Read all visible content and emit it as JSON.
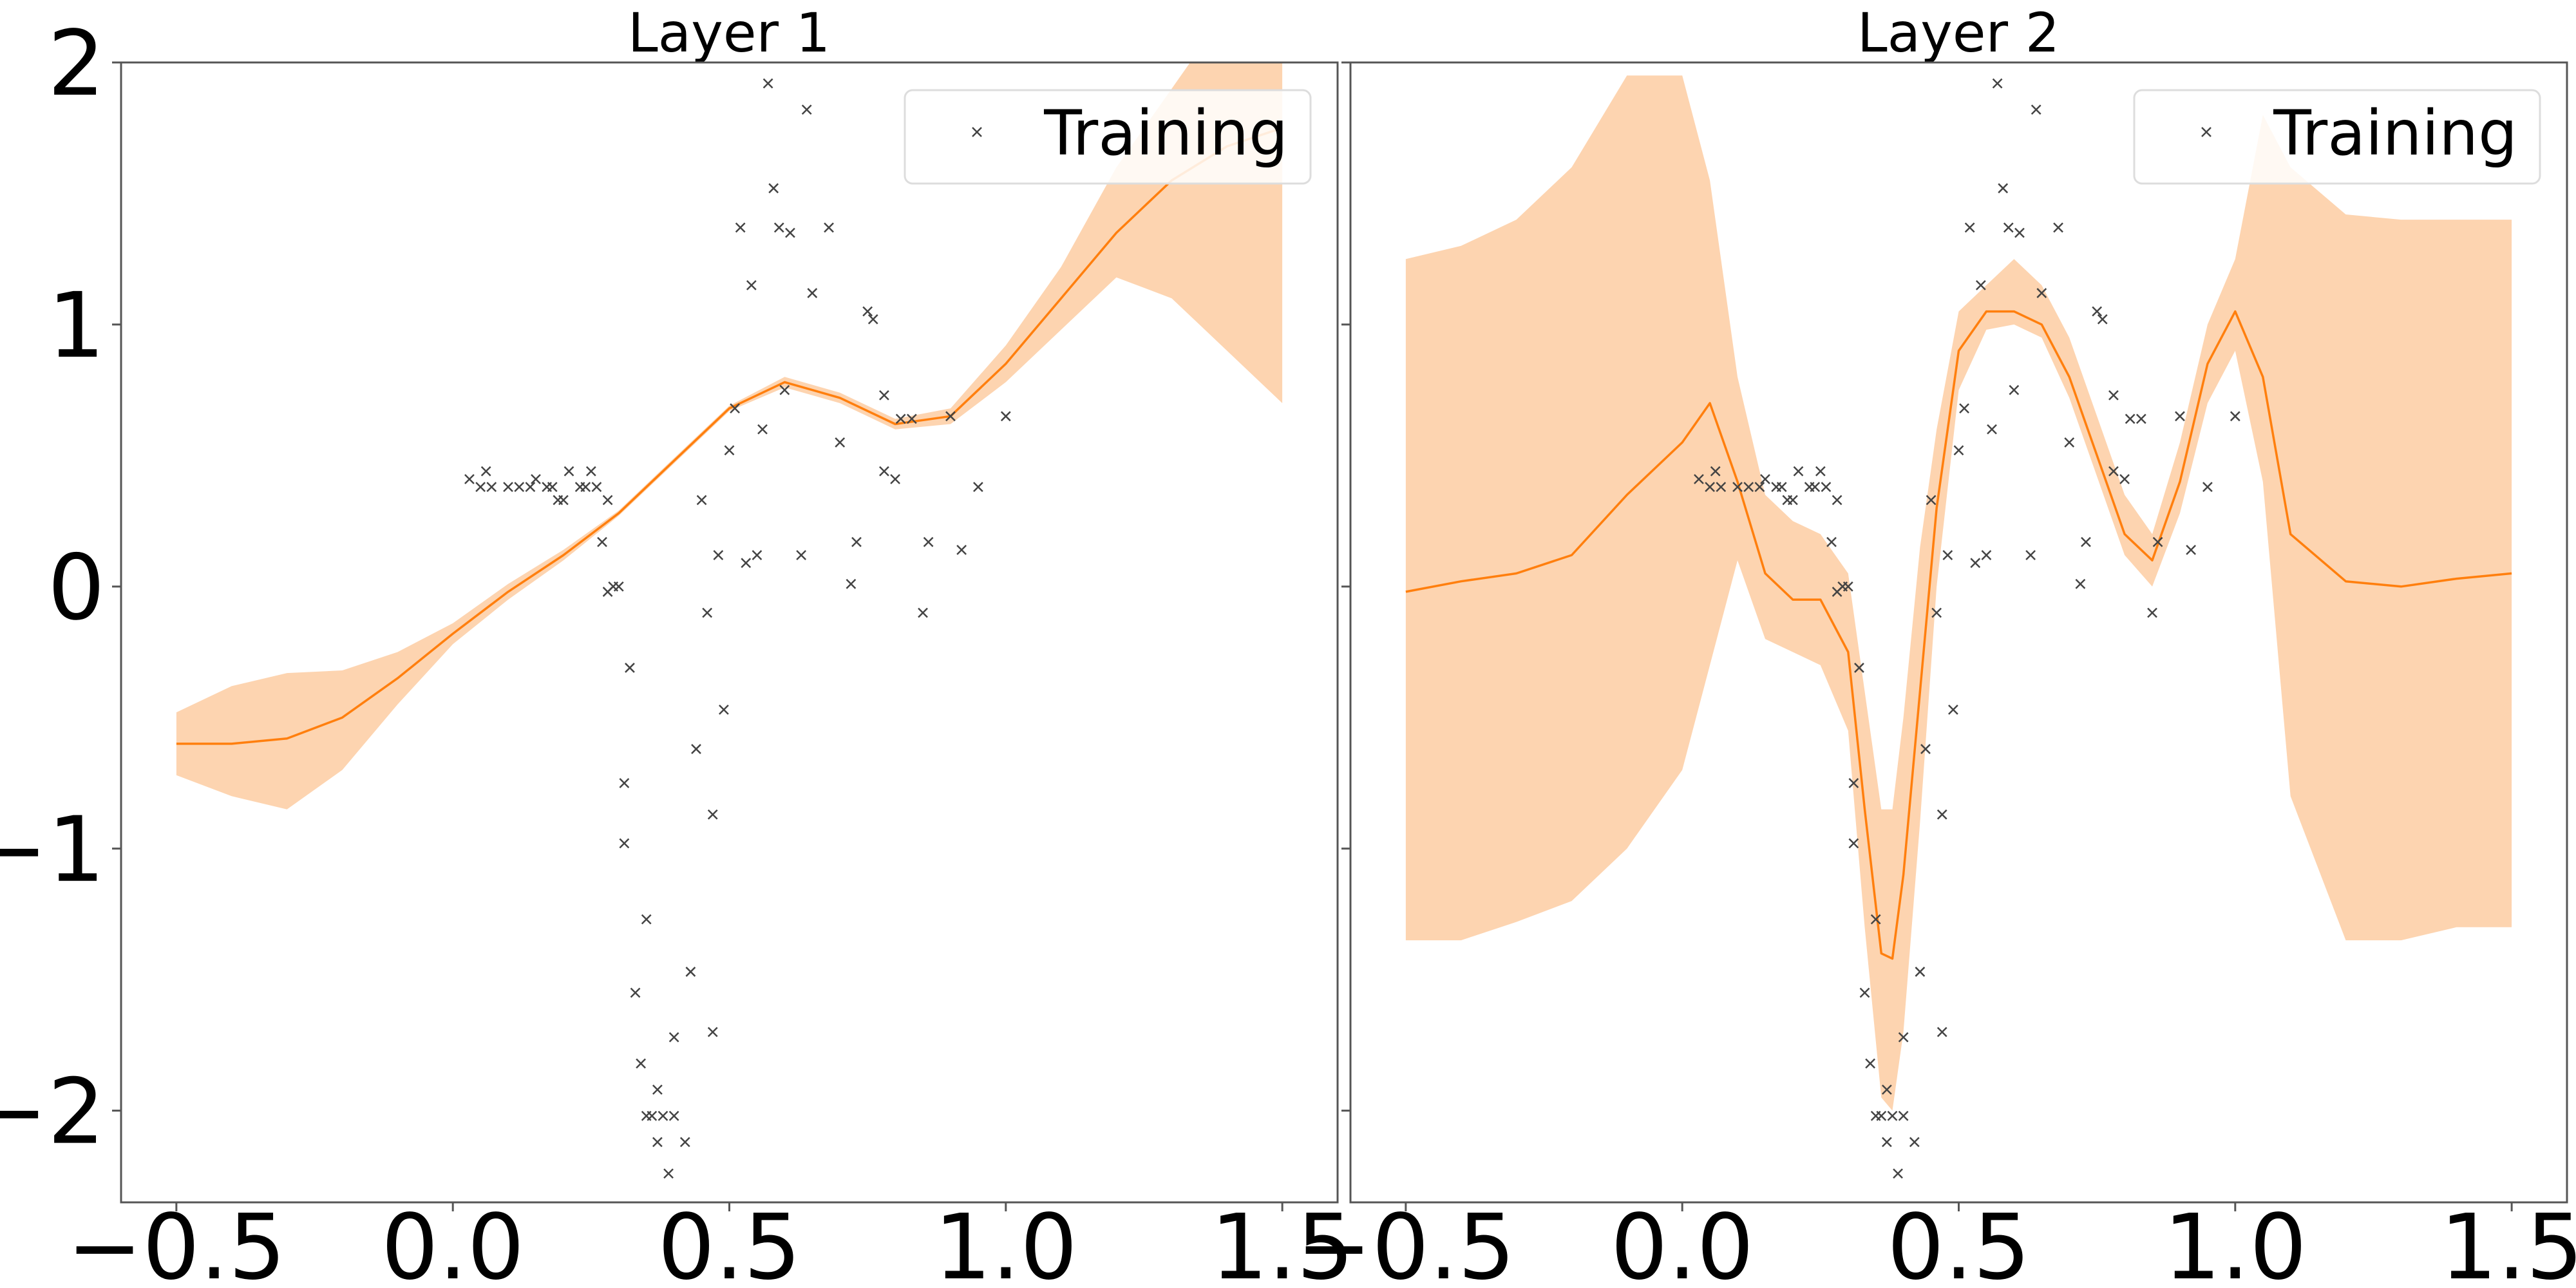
{
  "chart_data": [
    {
      "type": "line",
      "title": "Layer 1",
      "xlabel": "",
      "ylabel": "",
      "xlim": [
        -0.6,
        1.6
      ],
      "ylim": [
        -2.35,
        2.0
      ],
      "xticks": [
        -0.5,
        0.0,
        0.5,
        1.0,
        1.5
      ],
      "xtick_labels": [
        "−0.5",
        "0.0",
        "0.5",
        "1.0",
        "1.5"
      ],
      "yticks": [
        -2,
        -1,
        0,
        1,
        2
      ],
      "ytick_labels": [
        "−2",
        "−1",
        "0",
        "1",
        "2"
      ],
      "grid": false,
      "legend": {
        "position": "top-right",
        "entries": [
          "Training"
        ]
      },
      "series": [
        {
          "kind": "mean_with_band",
          "color": "#ff7f0e",
          "band_color": "#fdd4b0",
          "x": [
            -0.5,
            -0.4,
            -0.3,
            -0.2,
            -0.1,
            0.0,
            0.1,
            0.2,
            0.3,
            0.4,
            0.5,
            0.6,
            0.7,
            0.8,
            0.9,
            1.0,
            1.1,
            1.2,
            1.3,
            1.4,
            1.5
          ],
          "mean": [
            -0.6,
            -0.6,
            -0.58,
            -0.5,
            -0.35,
            -0.18,
            -0.02,
            0.12,
            0.28,
            0.48,
            0.68,
            0.78,
            0.72,
            0.62,
            0.65,
            0.85,
            1.1,
            1.35,
            1.55,
            1.68,
            1.75
          ],
          "lower": [
            -0.72,
            -0.8,
            -0.85,
            -0.7,
            -0.45,
            -0.22,
            -0.05,
            0.1,
            0.27,
            0.47,
            0.67,
            0.76,
            0.7,
            0.6,
            0.62,
            0.78,
            0.98,
            1.18,
            1.1,
            0.9,
            0.7
          ],
          "upper": [
            -0.48,
            -0.38,
            -0.33,
            -0.32,
            -0.25,
            -0.14,
            0.01,
            0.14,
            0.29,
            0.49,
            0.69,
            0.8,
            0.74,
            0.64,
            0.68,
            0.92,
            1.22,
            1.6,
            1.9,
            2.2,
            2.4
          ]
        }
      ],
      "training_points": [
        [
          0.03,
          0.41
        ],
        [
          0.05,
          0.38
        ],
        [
          0.06,
          0.44
        ],
        [
          0.07,
          0.38
        ],
        [
          0.1,
          0.38
        ],
        [
          0.12,
          0.38
        ],
        [
          0.14,
          0.38
        ],
        [
          0.15,
          0.41
        ],
        [
          0.17,
          0.38
        ],
        [
          0.18,
          0.38
        ],
        [
          0.19,
          0.33
        ],
        [
          0.2,
          0.33
        ],
        [
          0.21,
          0.44
        ],
        [
          0.23,
          0.38
        ],
        [
          0.24,
          0.38
        ],
        [
          0.25,
          0.44
        ],
        [
          0.26,
          0.38
        ],
        [
          0.27,
          0.17
        ],
        [
          0.28,
          0.33
        ],
        [
          0.28,
          -0.02
        ],
        [
          0.29,
          0.0
        ],
        [
          0.3,
          0.0
        ],
        [
          0.31,
          -0.75
        ],
        [
          0.31,
          -0.98
        ],
        [
          0.32,
          -0.31
        ],
        [
          0.33,
          -1.55
        ],
        [
          0.34,
          -1.82
        ],
        [
          0.35,
          -2.02
        ],
        [
          0.35,
          -1.27
        ],
        [
          0.36,
          -2.02
        ],
        [
          0.37,
          -1.92
        ],
        [
          0.37,
          -2.12
        ],
        [
          0.38,
          -2.02
        ],
        [
          0.39,
          -2.24
        ],
        [
          0.4,
          -1.72
        ],
        [
          0.4,
          -2.02
        ],
        [
          0.42,
          -2.12
        ],
        [
          0.43,
          -1.47
        ],
        [
          0.44,
          -0.62
        ],
        [
          0.45,
          0.33
        ],
        [
          0.46,
          -0.1
        ],
        [
          0.47,
          -0.87
        ],
        [
          0.47,
          -1.7
        ],
        [
          0.48,
          0.12
        ],
        [
          0.49,
          -0.47
        ],
        [
          0.5,
          0.52
        ],
        [
          0.51,
          0.68
        ],
        [
          0.52,
          1.37
        ],
        [
          0.53,
          0.09
        ],
        [
          0.54,
          1.15
        ],
        [
          0.55,
          0.12
        ],
        [
          0.56,
          0.6
        ],
        [
          0.57,
          1.92
        ],
        [
          0.58,
          1.52
        ],
        [
          0.59,
          1.37
        ],
        [
          0.6,
          0.75
        ],
        [
          0.61,
          1.35
        ],
        [
          0.63,
          0.12
        ],
        [
          0.64,
          1.82
        ],
        [
          0.65,
          1.12
        ],
        [
          0.68,
          1.37
        ],
        [
          0.7,
          0.55
        ],
        [
          0.72,
          0.01
        ],
        [
          0.73,
          0.17
        ],
        [
          0.75,
          1.05
        ],
        [
          0.76,
          1.02
        ],
        [
          0.78,
          0.73
        ],
        [
          0.78,
          0.44
        ],
        [
          0.8,
          0.41
        ],
        [
          0.81,
          0.64
        ],
        [
          0.83,
          0.64
        ],
        [
          0.85,
          -0.1
        ],
        [
          0.86,
          0.17
        ],
        [
          0.9,
          0.65
        ],
        [
          0.92,
          0.14
        ],
        [
          0.95,
          0.38
        ],
        [
          1.0,
          0.65
        ]
      ]
    },
    {
      "type": "line",
      "title": "Layer 2",
      "xlabel": "",
      "ylabel": "",
      "xlim": [
        -0.6,
        1.6
      ],
      "ylim": [
        -2.35,
        2.0
      ],
      "xticks": [
        -0.5,
        0.0,
        0.5,
        1.0,
        1.5
      ],
      "xtick_labels": [
        "−0.5",
        "0.0",
        "0.5",
        "1.0",
        "1.5"
      ],
      "yticks": [
        -2,
        -1,
        0,
        1,
        2
      ],
      "ytick_labels": [
        "",
        "",
        "",
        "",
        ""
      ],
      "grid": false,
      "legend": {
        "position": "top-right",
        "entries": [
          "Training"
        ]
      },
      "series": [
        {
          "kind": "mean_with_band",
          "color": "#ff7f0e",
          "band_color": "#fdd4b0",
          "x": [
            -0.5,
            -0.4,
            -0.3,
            -0.2,
            -0.1,
            0.0,
            0.05,
            0.1,
            0.15,
            0.2,
            0.25,
            0.3,
            0.33,
            0.36,
            0.38,
            0.4,
            0.43,
            0.46,
            0.5,
            0.55,
            0.6,
            0.65,
            0.7,
            0.75,
            0.8,
            0.85,
            0.9,
            0.95,
            1.0,
            1.05,
            1.1,
            1.2,
            1.3,
            1.4,
            1.5
          ],
          "mean": [
            -0.02,
            0.02,
            0.05,
            0.12,
            0.35,
            0.55,
            0.7,
            0.4,
            0.05,
            -0.05,
            -0.05,
            -0.25,
            -0.85,
            -1.4,
            -1.42,
            -1.1,
            -0.4,
            0.3,
            0.9,
            1.05,
            1.05,
            1.0,
            0.8,
            0.5,
            0.2,
            0.1,
            0.4,
            0.85,
            1.05,
            0.8,
            0.2,
            0.02,
            0.0,
            0.03,
            0.05
          ],
          "lower": [
            -1.35,
            -1.35,
            -1.28,
            -1.2,
            -1.0,
            -0.7,
            -0.3,
            0.1,
            -0.2,
            -0.25,
            -0.3,
            -0.55,
            -1.3,
            -1.95,
            -2.0,
            -1.7,
            -0.9,
            0.0,
            0.75,
            0.98,
            1.0,
            0.95,
            0.72,
            0.42,
            0.12,
            0.0,
            0.28,
            0.7,
            0.9,
            0.4,
            -0.8,
            -1.35,
            -1.35,
            -1.3,
            -1.3
          ],
          "upper": [
            1.25,
            1.3,
            1.4,
            1.6,
            1.95,
            1.95,
            1.55,
            0.8,
            0.35,
            0.25,
            0.2,
            0.05,
            -0.4,
            -0.85,
            -0.85,
            -0.5,
            0.15,
            0.6,
            1.05,
            1.15,
            1.25,
            1.15,
            0.95,
            0.65,
            0.35,
            0.2,
            0.55,
            1.0,
            1.25,
            1.8,
            1.6,
            1.42,
            1.4,
            1.4,
            1.4
          ]
        }
      ],
      "training_points": [
        [
          0.03,
          0.41
        ],
        [
          0.05,
          0.38
        ],
        [
          0.06,
          0.44
        ],
        [
          0.07,
          0.38
        ],
        [
          0.1,
          0.38
        ],
        [
          0.12,
          0.38
        ],
        [
          0.14,
          0.38
        ],
        [
          0.15,
          0.41
        ],
        [
          0.17,
          0.38
        ],
        [
          0.18,
          0.38
        ],
        [
          0.19,
          0.33
        ],
        [
          0.2,
          0.33
        ],
        [
          0.21,
          0.44
        ],
        [
          0.23,
          0.38
        ],
        [
          0.24,
          0.38
        ],
        [
          0.25,
          0.44
        ],
        [
          0.26,
          0.38
        ],
        [
          0.27,
          0.17
        ],
        [
          0.28,
          0.33
        ],
        [
          0.28,
          -0.02
        ],
        [
          0.29,
          0.0
        ],
        [
          0.3,
          0.0
        ],
        [
          0.31,
          -0.75
        ],
        [
          0.31,
          -0.98
        ],
        [
          0.32,
          -0.31
        ],
        [
          0.33,
          -1.55
        ],
        [
          0.34,
          -1.82
        ],
        [
          0.35,
          -2.02
        ],
        [
          0.35,
          -1.27
        ],
        [
          0.36,
          -2.02
        ],
        [
          0.37,
          -1.92
        ],
        [
          0.37,
          -2.12
        ],
        [
          0.38,
          -2.02
        ],
        [
          0.39,
          -2.24
        ],
        [
          0.4,
          -1.72
        ],
        [
          0.4,
          -2.02
        ],
        [
          0.42,
          -2.12
        ],
        [
          0.43,
          -1.47
        ],
        [
          0.44,
          -0.62
        ],
        [
          0.45,
          0.33
        ],
        [
          0.46,
          -0.1
        ],
        [
          0.47,
          -0.87
        ],
        [
          0.47,
          -1.7
        ],
        [
          0.48,
          0.12
        ],
        [
          0.49,
          -0.47
        ],
        [
          0.5,
          0.52
        ],
        [
          0.51,
          0.68
        ],
        [
          0.52,
          1.37
        ],
        [
          0.53,
          0.09
        ],
        [
          0.54,
          1.15
        ],
        [
          0.55,
          0.12
        ],
        [
          0.56,
          0.6
        ],
        [
          0.57,
          1.92
        ],
        [
          0.58,
          1.52
        ],
        [
          0.59,
          1.37
        ],
        [
          0.6,
          0.75
        ],
        [
          0.61,
          1.35
        ],
        [
          0.63,
          0.12
        ],
        [
          0.64,
          1.82
        ],
        [
          0.65,
          1.12
        ],
        [
          0.68,
          1.37
        ],
        [
          0.7,
          0.55
        ],
        [
          0.72,
          0.01
        ],
        [
          0.73,
          0.17
        ],
        [
          0.75,
          1.05
        ],
        [
          0.76,
          1.02
        ],
        [
          0.78,
          0.73
        ],
        [
          0.78,
          0.44
        ],
        [
          0.8,
          0.41
        ],
        [
          0.81,
          0.64
        ],
        [
          0.83,
          0.64
        ],
        [
          0.85,
          -0.1
        ],
        [
          0.86,
          0.17
        ],
        [
          0.9,
          0.65
        ],
        [
          0.92,
          0.14
        ],
        [
          0.95,
          0.38
        ],
        [
          1.0,
          0.65
        ]
      ]
    }
  ]
}
